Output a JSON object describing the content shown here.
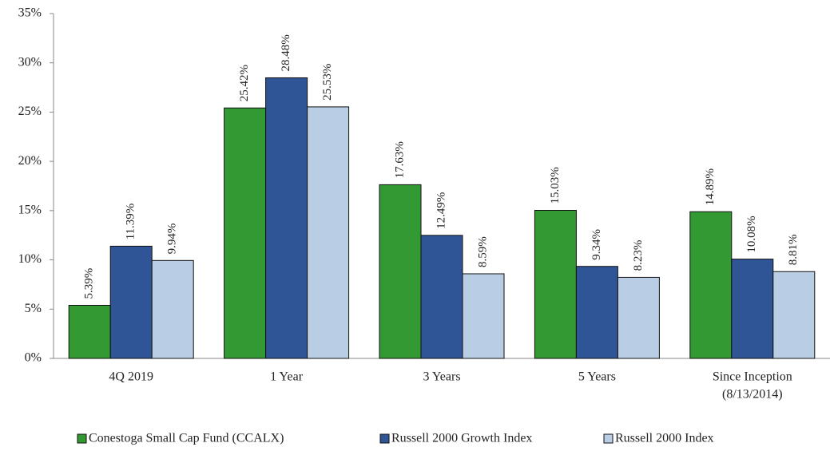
{
  "chart_data": {
    "type": "bar",
    "categories": [
      [
        "4Q 2019"
      ],
      [
        "1 Year"
      ],
      [
        "3 Years"
      ],
      [
        "5 Years"
      ],
      [
        "Since Inception",
        "(8/13/2014)"
      ]
    ],
    "series": [
      {
        "name": "Conestoga Small Cap Fund (CCALX)",
        "color": "#339933",
        "values": [
          5.39,
          25.42,
          17.63,
          15.03,
          14.89
        ],
        "value_labels": [
          "5.39%",
          "25.42%",
          "17.63%",
          "15.03%",
          "14.89%"
        ]
      },
      {
        "name": "Russell 2000 Growth Index",
        "color": "#2f5597",
        "values": [
          11.39,
          28.48,
          12.49,
          9.34,
          10.08
        ],
        "value_labels": [
          "11.39%",
          "28.48%",
          "12.49%",
          "9.34%",
          "10.08%"
        ]
      },
      {
        "name": "Russell 2000 Index",
        "color": "#b9cde5",
        "values": [
          9.94,
          25.53,
          8.59,
          8.23,
          8.81
        ],
        "value_labels": [
          "9.94%",
          "25.53%",
          "8.59%",
          "8.23%",
          "8.81%"
        ]
      }
    ],
    "ylim": [
      0,
      35
    ],
    "yticks": [
      {
        "value": 0,
        "label": "0%"
      },
      {
        "value": 5,
        "label": "5%"
      },
      {
        "value": 10,
        "label": "10%"
      },
      {
        "value": 15,
        "label": "15%"
      },
      {
        "value": 20,
        "label": "20%"
      },
      {
        "value": 25,
        "label": "25%"
      },
      {
        "value": 30,
        "label": "30%"
      },
      {
        "value": 35,
        "label": "35%"
      }
    ],
    "grid": false,
    "legend": "bottom"
  }
}
